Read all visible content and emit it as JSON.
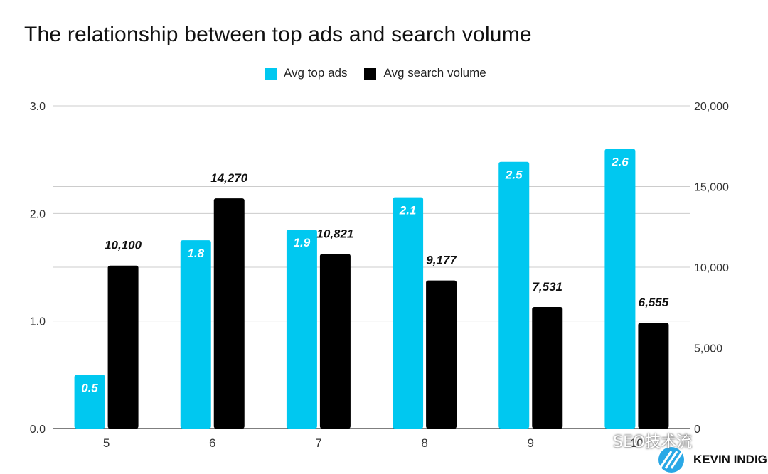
{
  "chart_data": {
    "type": "bar",
    "title": "The relationship between top ads and search volume",
    "categories": [
      "5",
      "6",
      "7",
      "8",
      "9",
      "10"
    ],
    "series": [
      {
        "name": "Avg top ads",
        "axis": "left",
        "color": "#00C8F0",
        "values": [
          0.5,
          1.75,
          1.85,
          2.15,
          2.48,
          2.6
        ],
        "labels": [
          "0.5",
          "1.8",
          "1.9",
          "2.1",
          "2.5",
          "2.6"
        ]
      },
      {
        "name": "Avg search volume",
        "axis": "right",
        "color": "#000000",
        "values": [
          10100,
          14270,
          10821,
          9177,
          7531,
          6555
        ],
        "labels": [
          "10,100",
          "14,270",
          "10,821",
          "9,177",
          "7,531",
          "6,555"
        ]
      }
    ],
    "left_axis": {
      "ylim": [
        0,
        3
      ],
      "ticks": [
        "0.0",
        "1.0",
        "2.0",
        "3.0"
      ],
      "tick_values": [
        0,
        1,
        2,
        3
      ]
    },
    "right_axis": {
      "ylim": [
        0,
        20000
      ],
      "ticks": [
        "0",
        "5,000",
        "10,000",
        "15,000",
        "20,000"
      ],
      "tick_values": [
        0,
        5000,
        10000,
        15000,
        20000
      ]
    },
    "grid": true,
    "legend": "top-center"
  },
  "legend": {
    "items": [
      {
        "label": "Avg top ads",
        "color": "#00C8F0"
      },
      {
        "label": "Avg search volume",
        "color": "#000000"
      }
    ]
  },
  "watermark": {
    "text": "SEO技术流"
  },
  "brand": {
    "text": "KEVIN INDIG"
  }
}
